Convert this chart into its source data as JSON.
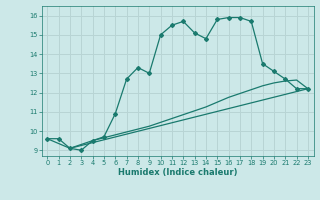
{
  "xlabel": "Humidex (Indice chaleur)",
  "bg_color": "#cce8e8",
  "grid_color": "#b8d4d4",
  "line_color": "#1a7a6e",
  "xlim": [
    -0.5,
    23.5
  ],
  "ylim": [
    8.7,
    16.5
  ],
  "yticks": [
    9,
    10,
    11,
    12,
    13,
    14,
    15,
    16
  ],
  "xticks": [
    0,
    1,
    2,
    3,
    4,
    5,
    6,
    7,
    8,
    9,
    10,
    11,
    12,
    13,
    14,
    15,
    16,
    17,
    18,
    19,
    20,
    21,
    22,
    23
  ],
  "curve1_x": [
    0,
    1,
    2,
    3,
    4,
    5,
    6,
    7,
    8,
    9,
    10,
    11,
    12,
    13,
    14,
    15,
    16,
    17,
    18,
    19,
    20,
    21,
    22,
    23
  ],
  "curve1_y": [
    9.6,
    9.6,
    9.1,
    9.0,
    9.5,
    9.7,
    10.9,
    12.7,
    13.3,
    13.0,
    15.0,
    15.5,
    15.7,
    15.1,
    14.8,
    15.8,
    15.9,
    15.9,
    15.7,
    13.5,
    13.1,
    12.7,
    12.2,
    12.2
  ],
  "curve2_x": [
    2,
    4,
    5,
    6,
    7,
    8,
    9,
    10,
    11,
    12,
    13,
    14,
    15,
    16,
    17,
    18,
    19,
    20,
    21,
    22,
    23
  ],
  "curve2_y": [
    9.1,
    9.5,
    9.65,
    9.8,
    9.95,
    10.1,
    10.25,
    10.45,
    10.65,
    10.85,
    11.05,
    11.25,
    11.5,
    11.75,
    11.95,
    12.15,
    12.35,
    12.5,
    12.6,
    12.65,
    12.2
  ],
  "curve3_x": [
    0,
    2,
    23
  ],
  "curve3_y": [
    9.6,
    9.1,
    12.2
  ]
}
